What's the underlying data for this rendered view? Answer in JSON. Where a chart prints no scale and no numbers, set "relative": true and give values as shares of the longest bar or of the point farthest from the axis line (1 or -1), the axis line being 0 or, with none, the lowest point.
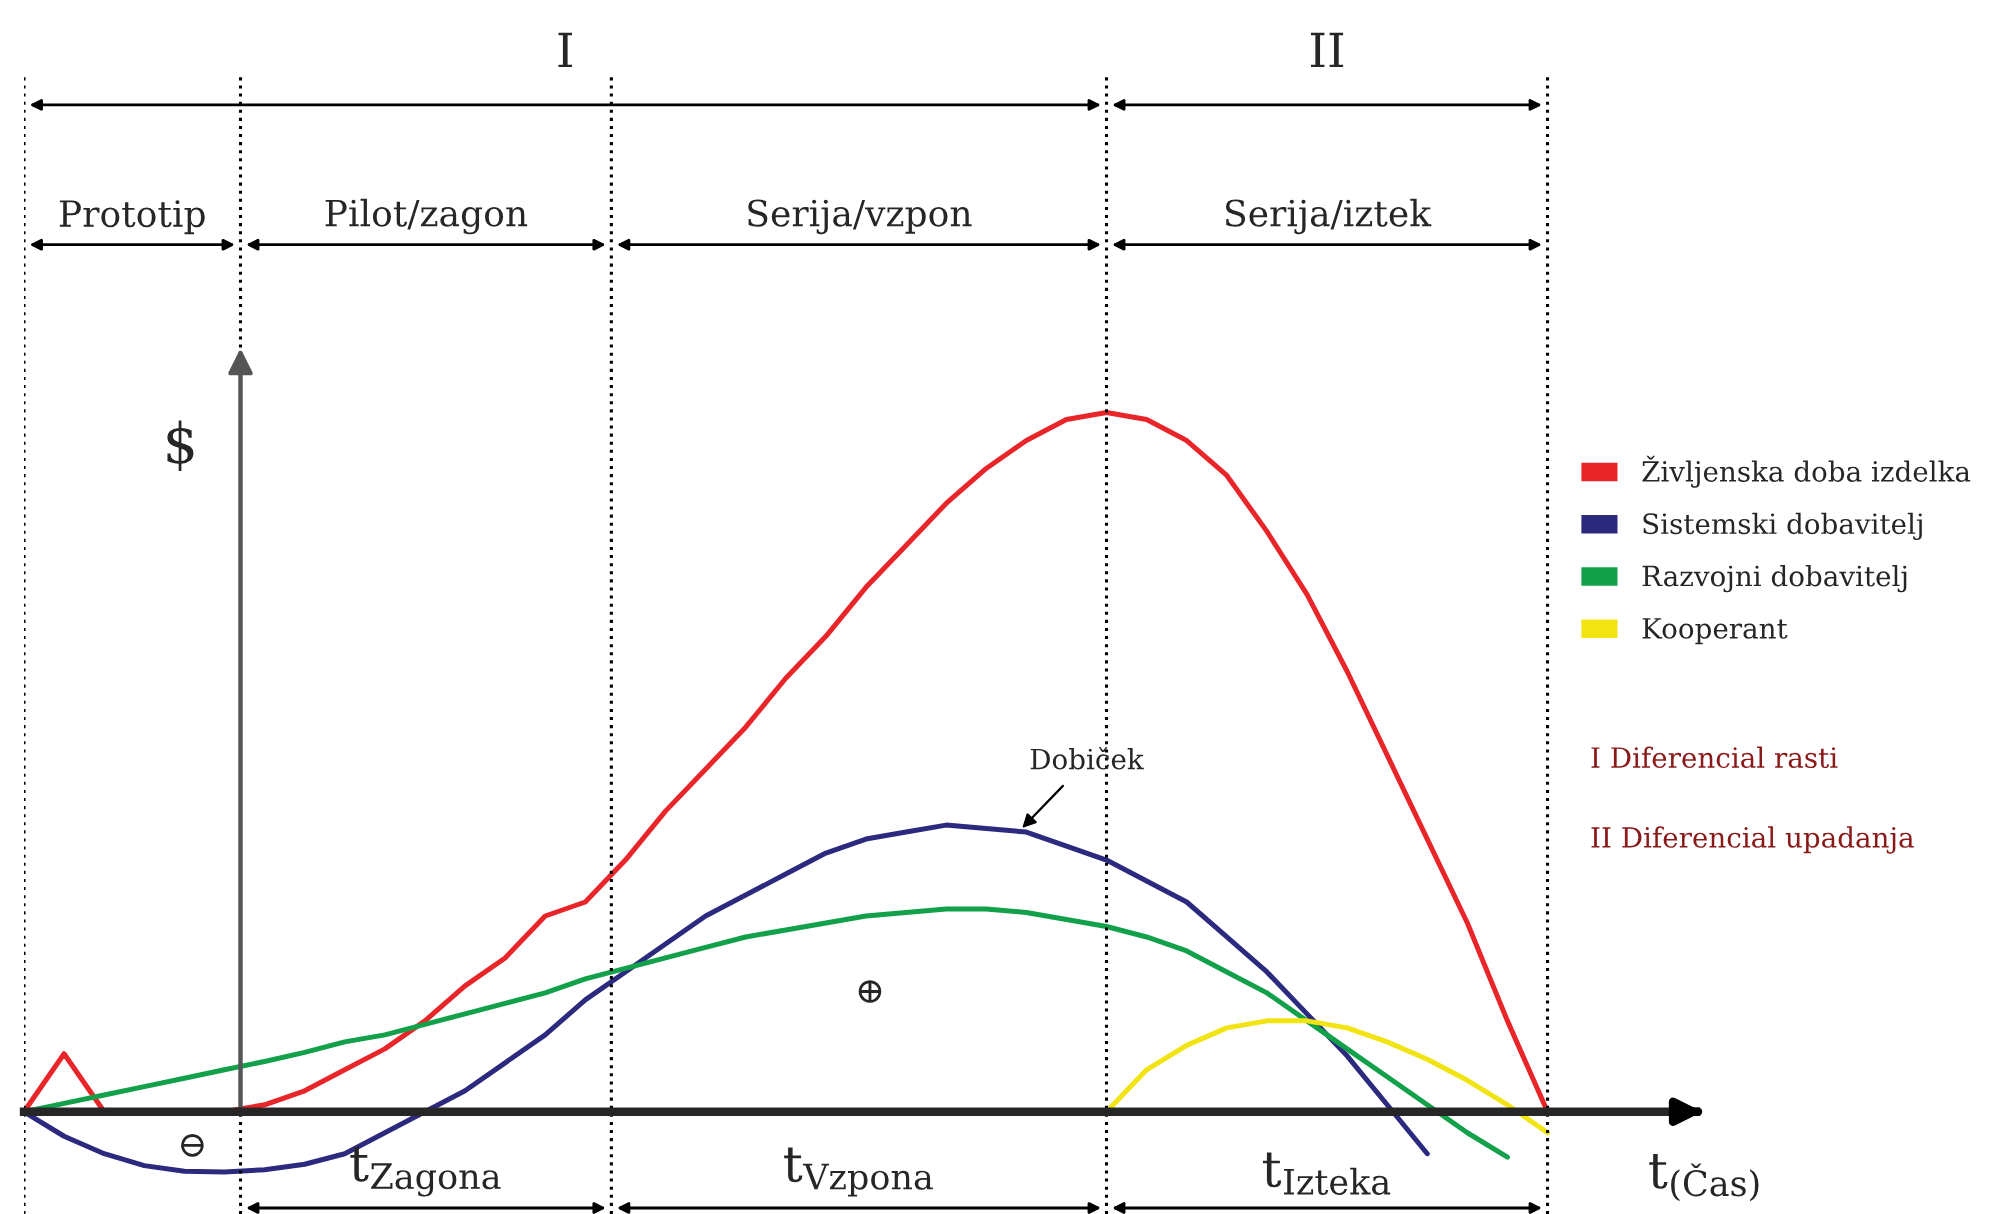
{
  "chart_data": {
    "type": "line",
    "relative": true,
    "grid": "x",
    "ylabel": "$",
    "xlabel": "t$_{(Čas)}$",
    "legend": "right",
    "marker": "none",
    "line_style": "solid",
    "categories": [
      null,
      null,
      null,
      null,
      null,
      null,
      null,
      null,
      null,
      null,
      null,
      null,
      null,
      null,
      null,
      null,
      null,
      null,
      null,
      null,
      null,
      null,
      null,
      null,
      null,
      null,
      null,
      null,
      null,
      null,
      null,
      null,
      null,
      null,
      null,
      null,
      null,
      null,
      null
    ],
    "series": [
      {
        "name": "Življenska doba izdelka",
        "color": "#e8262a",
        "values": [
          0,
          0.083,
          0,
          0,
          0,
          0,
          0.01,
          0.03,
          0.06,
          0.09,
          0.13,
          0.18,
          0.22,
          0.28,
          0.3,
          0.36,
          0.43,
          0.49,
          0.55,
          0.62,
          0.68,
          0.75,
          0.81,
          0.87,
          0.92,
          0.96,
          0.99,
          1.0,
          0.99,
          0.96,
          0.91,
          0.83,
          0.74,
          0.63,
          0.51,
          0.39,
          0.27,
          0.13,
          0
        ]
      },
      {
        "name": "Sistemski dobavitelj",
        "color": "#2b2a7f",
        "values": [
          0,
          -0.035,
          -0.06,
          -0.077,
          -0.085,
          -0.086,
          -0.083,
          -0.075,
          -0.06,
          -0.03,
          0.0,
          0.03,
          0.07,
          0.11,
          0.16,
          0.2,
          0.24,
          0.28,
          0.31,
          0.34,
          0.37,
          0.39,
          0.4,
          0.41,
          0.405,
          0.4,
          0.38,
          0.36,
          0.33,
          0.3,
          0.25,
          0.2,
          0.14,
          0.08,
          0.01,
          -0.06,
          null,
          null,
          null
        ]
      },
      {
        "name": "Razvojni dobavitelj",
        "color": "#12a04a",
        "values": [
          0,
          0.012,
          0.024,
          0.036,
          0.048,
          0.06,
          0.072,
          0.085,
          0.1,
          0.11,
          0.125,
          0.14,
          0.155,
          0.17,
          0.19,
          0.205,
          0.22,
          0.235,
          0.25,
          0.26,
          0.27,
          0.28,
          0.285,
          0.29,
          0.29,
          0.285,
          0.275,
          0.265,
          0.25,
          0.23,
          0.2,
          0.17,
          0.13,
          0.09,
          0.05,
          0.01,
          -0.03,
          -0.065,
          null
        ]
      },
      {
        "name": "Kooperant",
        "color": "#f2e312",
        "values": [
          null,
          null,
          null,
          null,
          null,
          null,
          null,
          null,
          null,
          null,
          null,
          null,
          null,
          null,
          null,
          null,
          null,
          null,
          null,
          null,
          null,
          null,
          null,
          null,
          null,
          null,
          null,
          0,
          0.06,
          0.095,
          0.12,
          0.13,
          0.13,
          0.12,
          0.1,
          0.075,
          0.045,
          0.01,
          -0.03
        ]
      }
    ],
    "annotations": [
      "Dobiček",
      "⊕",
      "⊖",
      "I Diferencial rasti",
      "II Diferencial upadanja",
      "I",
      "II",
      "Prototip",
      "Pilot/zagon",
      "Serija/vzpon",
      "Serija/iztek",
      "t$_{Zagona}$",
      "t$_{Vzpona}$",
      "t$_{Izteka}$"
    ]
  }
}
